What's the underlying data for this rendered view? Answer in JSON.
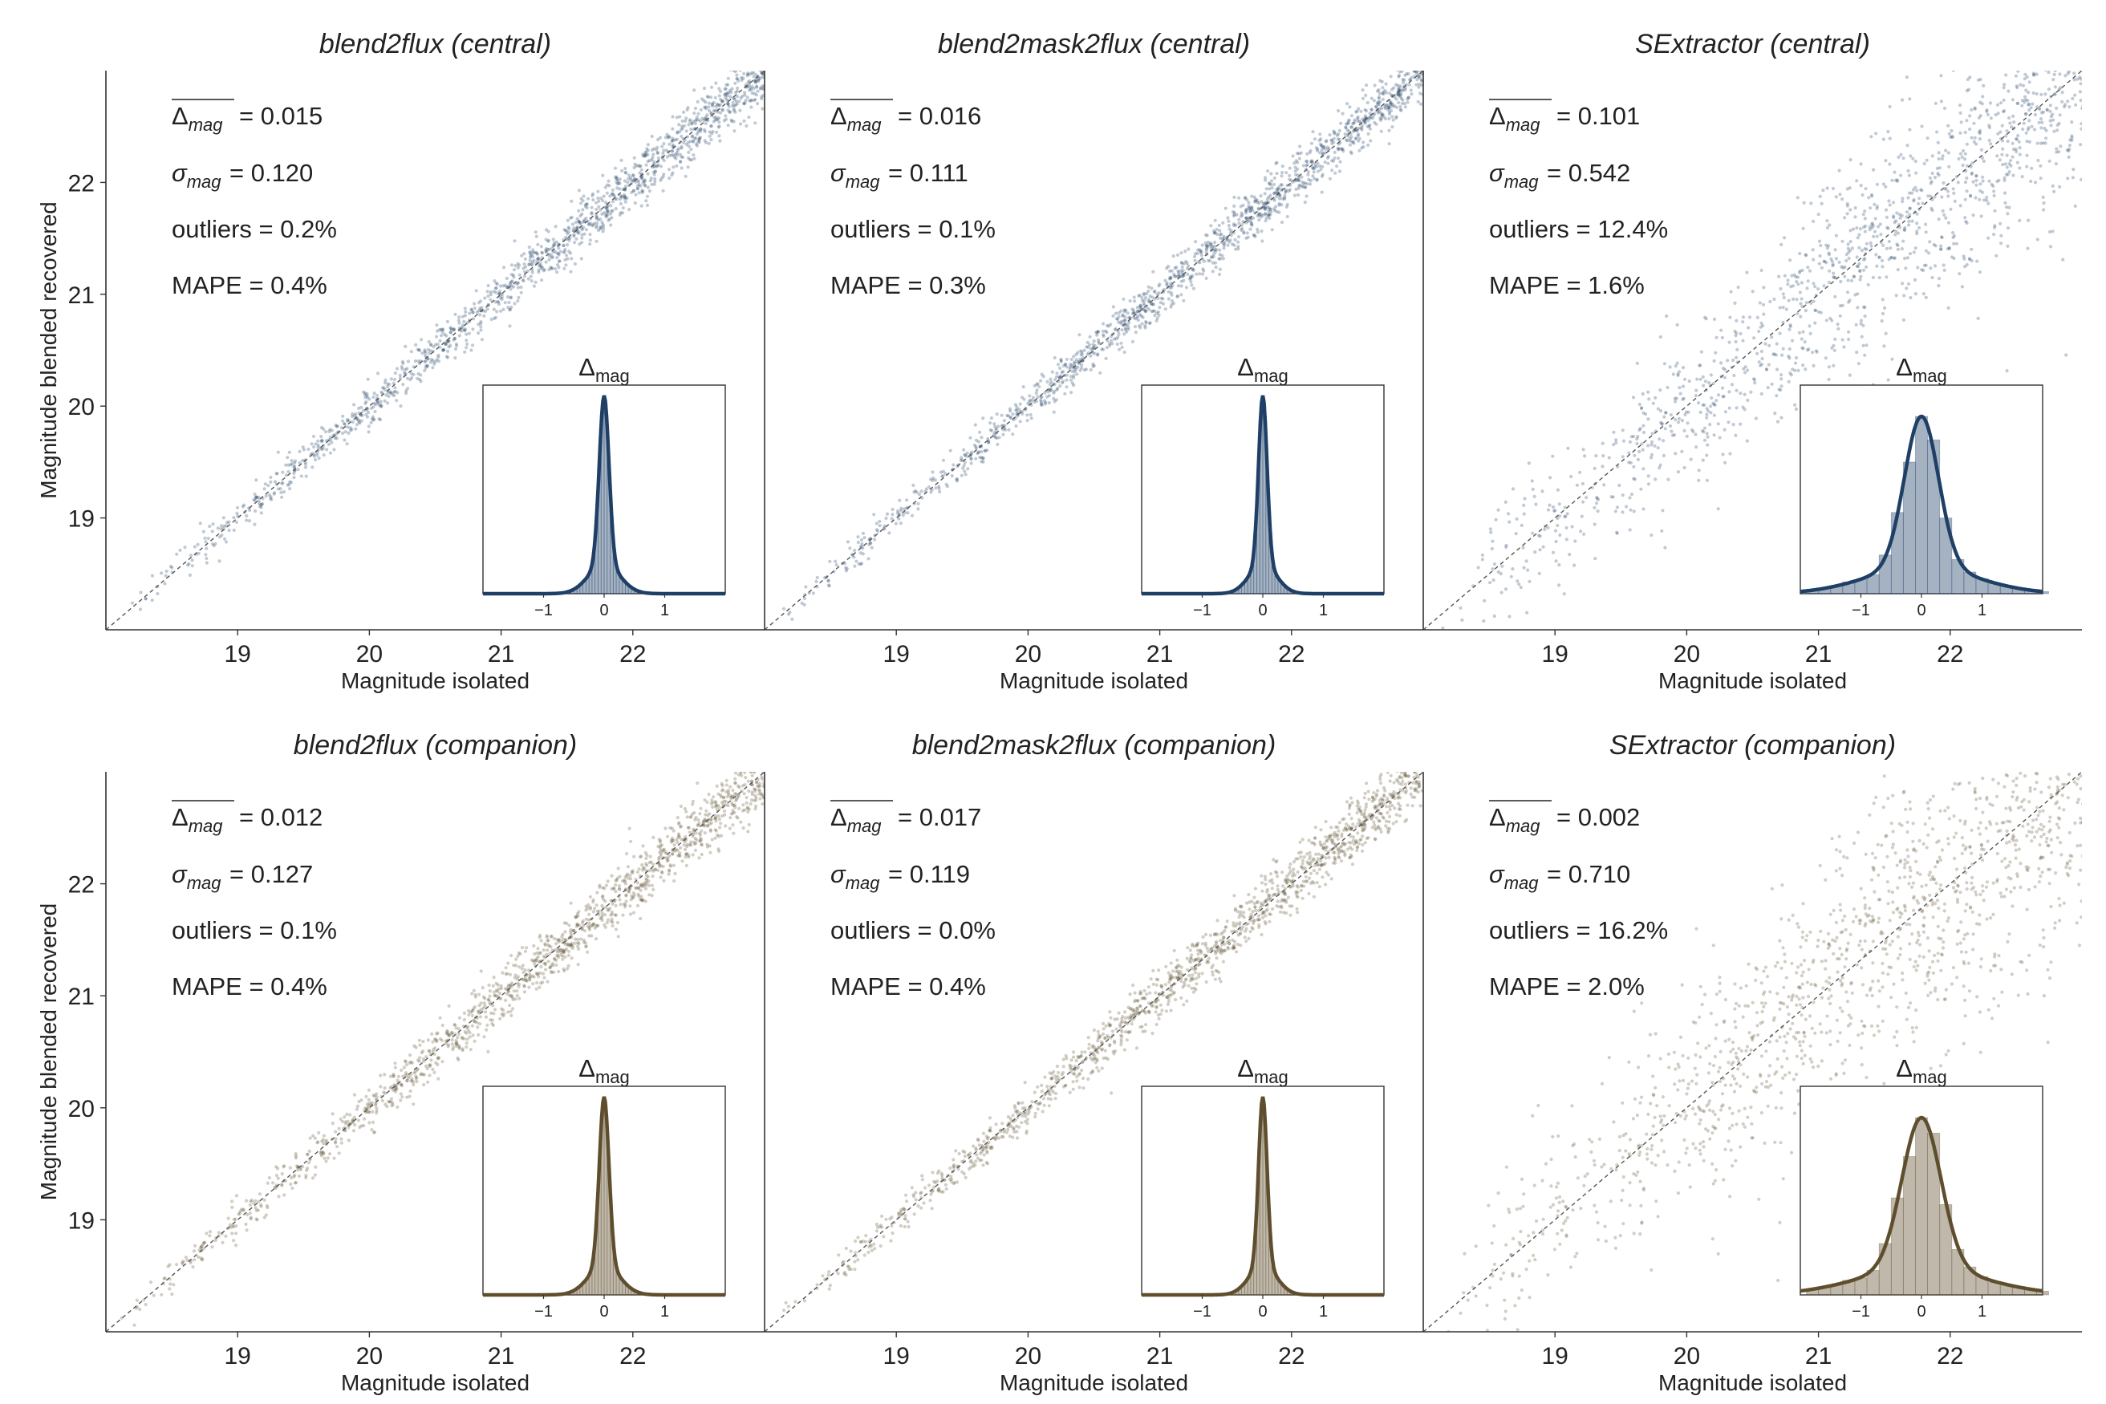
{
  "figure": {
    "ylabel": "Magnitude blended recovered",
    "xlabel": "Magnitude isolated",
    "inset_label_main": "Δ",
    "inset_label_sub": "mag",
    "stat_labels": {
      "delta_main": "Δ",
      "delta_sub": "mag",
      "sigma_main": "σ",
      "sigma_sub": "mag",
      "outliers": "outliers",
      "mape": "MAPE"
    }
  },
  "colors": {
    "central": "#1f3f66",
    "companion": "#5e4e2e",
    "diag": "#555555"
  },
  "chart_data": [
    {
      "type": "scatter",
      "title": "blend2flux (central)",
      "method": "blend2flux",
      "role": "central",
      "delta_mean": "0.015",
      "sigma": "0.120",
      "outliers": "0.2%",
      "mape": "0.4%",
      "xlim": [
        18.0,
        23.0
      ],
      "ylim": [
        18.0,
        23.0
      ],
      "xticks": [
        19,
        20,
        21,
        22
      ],
      "yticks": [
        19,
        20,
        21,
        22
      ],
      "spread": 0.12,
      "inset": {
        "type": "histogram",
        "xlim": [
          -2,
          2
        ],
        "xticks": [
          -1,
          0,
          1
        ],
        "sigma": 0.08,
        "peak_scale": 0.95,
        "show_bars": false
      }
    },
    {
      "type": "scatter",
      "title": "blend2mask2flux (central)",
      "method": "blend2mask2flux",
      "role": "central",
      "delta_mean": "0.016",
      "sigma": "0.111",
      "outliers": "0.1%",
      "mape": "0.3%",
      "xlim": [
        18.0,
        23.0
      ],
      "ylim": [
        18.0,
        23.0
      ],
      "xticks": [
        19,
        20,
        21,
        22
      ],
      "yticks": [
        19,
        20,
        21,
        22
      ],
      "spread": 0.11,
      "inset": {
        "type": "histogram",
        "xlim": [
          -2,
          2
        ],
        "xticks": [
          -1,
          0,
          1
        ],
        "sigma": 0.07,
        "peak_scale": 0.95,
        "show_bars": false
      }
    },
    {
      "type": "scatter",
      "title": "SExtractor (central)",
      "method": "SExtractor",
      "role": "central",
      "delta_mean": "0.101",
      "sigma": "0.542",
      "outliers": "12.4%",
      "mape": "1.6%",
      "xlim": [
        18.0,
        23.0
      ],
      "ylim": [
        18.0,
        23.0
      ],
      "xticks": [
        19,
        20,
        21,
        22
      ],
      "yticks": [
        19,
        20,
        21,
        22
      ],
      "spread": 0.45,
      "inset": {
        "type": "histogram",
        "xlim": [
          -2,
          2
        ],
        "xticks": [
          -1,
          0,
          1
        ],
        "sigma": 0.28,
        "peak_scale": 0.85,
        "show_bars": true
      }
    },
    {
      "type": "scatter",
      "title": "blend2flux (companion)",
      "method": "blend2flux",
      "role": "companion",
      "delta_mean": "0.012",
      "sigma": "0.127",
      "outliers": "0.1%",
      "mape": "0.4%",
      "xlim": [
        18.0,
        23.0
      ],
      "ylim": [
        18.0,
        23.0
      ],
      "xticks": [
        19,
        20,
        21,
        22
      ],
      "yticks": [
        19,
        20,
        21,
        22
      ],
      "spread": 0.13,
      "inset": {
        "type": "histogram",
        "xlim": [
          -2,
          2
        ],
        "xticks": [
          -1,
          0,
          1
        ],
        "sigma": 0.08,
        "peak_scale": 0.95,
        "show_bars": false
      }
    },
    {
      "type": "scatter",
      "title": "blend2mask2flux (companion)",
      "method": "blend2mask2flux",
      "role": "companion",
      "delta_mean": "0.017",
      "sigma": "0.119",
      "outliers": "0.0%",
      "mape": "0.4%",
      "xlim": [
        18.0,
        23.0
      ],
      "ylim": [
        18.0,
        23.0
      ],
      "xticks": [
        19,
        20,
        21,
        22
      ],
      "yticks": [
        19,
        20,
        21,
        22
      ],
      "spread": 0.12,
      "inset": {
        "type": "histogram",
        "xlim": [
          -2,
          2
        ],
        "xticks": [
          -1,
          0,
          1
        ],
        "sigma": 0.07,
        "peak_scale": 0.95,
        "show_bars": false
      }
    },
    {
      "type": "scatter",
      "title": "SExtractor (companion)",
      "method": "SExtractor",
      "role": "companion",
      "delta_mean": "0.002",
      "sigma": "0.710",
      "outliers": "16.2%",
      "mape": "2.0%",
      "xlim": [
        18.0,
        23.0
      ],
      "ylim": [
        18.0,
        23.0
      ],
      "xticks": [
        19,
        20,
        21,
        22
      ],
      "yticks": [
        19,
        20,
        21,
        22
      ],
      "spread": 0.6,
      "inset": {
        "type": "histogram",
        "xlim": [
          -2,
          2
        ],
        "xticks": [
          -1,
          0,
          1
        ],
        "sigma": 0.32,
        "peak_scale": 0.85,
        "show_bars": true
      }
    }
  ]
}
